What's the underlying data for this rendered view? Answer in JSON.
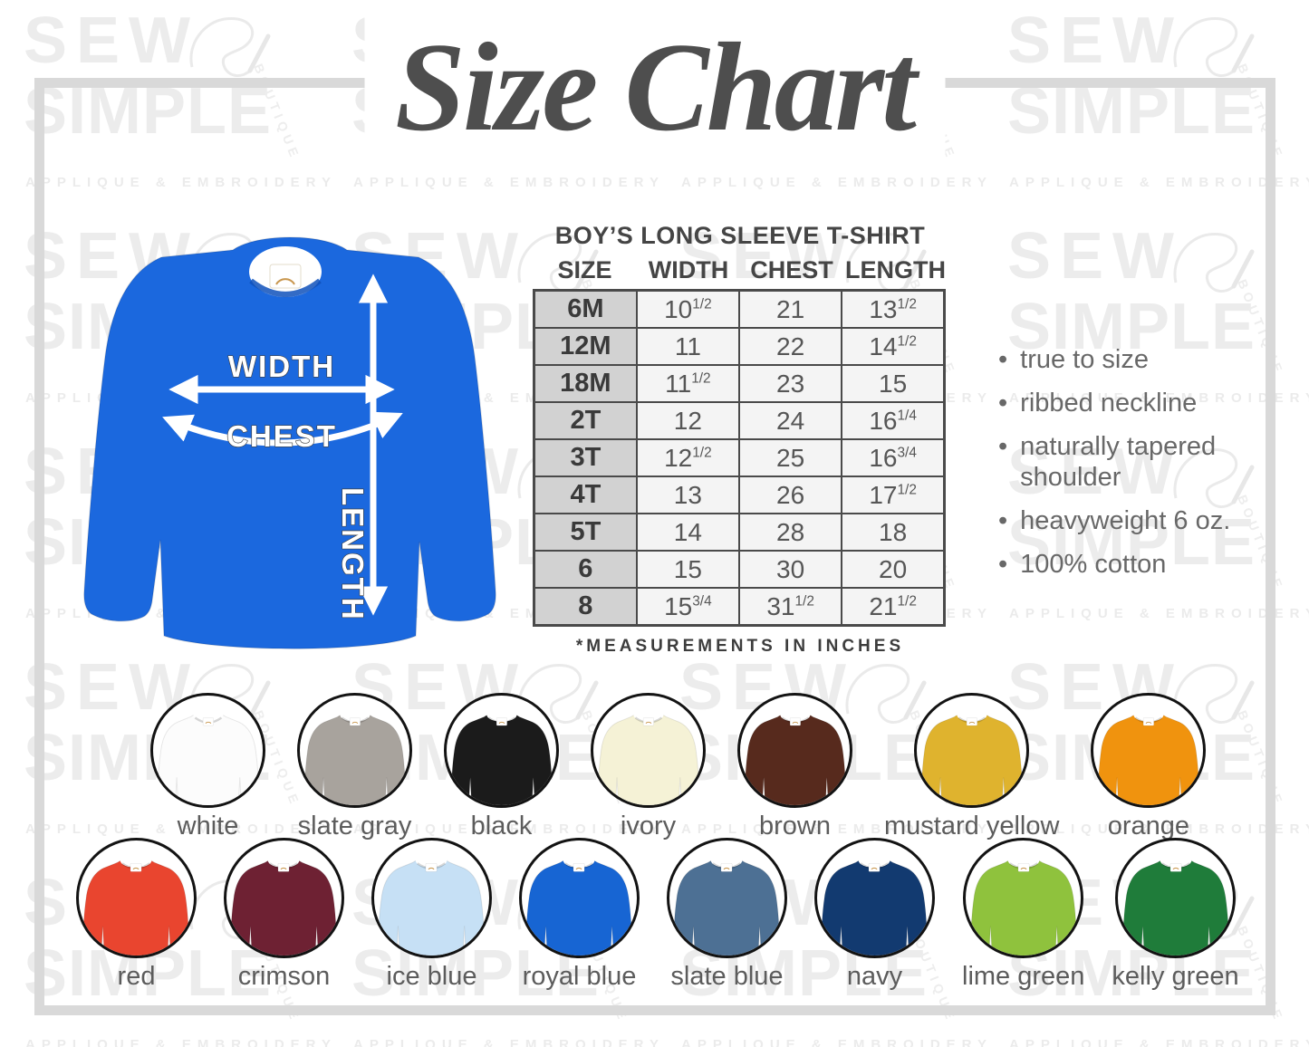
{
  "title": "Size Chart",
  "watermark": {
    "word1": "SEW",
    "word2": "SIMPLE",
    "word3": "BOUTIQUE",
    "word4": "APPLIQUE & EMBROIDERY"
  },
  "diagram": {
    "shirt_color": "#1b68de",
    "labels": {
      "width": "WIDTH",
      "chest": "CHEST",
      "length": "LENGTH"
    }
  },
  "size_table": {
    "title": "BOY’S LONG SLEEVE T-SHIRT",
    "columns": [
      "SIZE",
      "WIDTH",
      "CHEST",
      "LENGTH"
    ],
    "rows": [
      {
        "size": "6M",
        "width": {
          "n": "10",
          "f": "1/2"
        },
        "chest": {
          "n": "21",
          "f": ""
        },
        "length": {
          "n": "13",
          "f": "1/2"
        }
      },
      {
        "size": "12M",
        "width": {
          "n": "11",
          "f": ""
        },
        "chest": {
          "n": "22",
          "f": ""
        },
        "length": {
          "n": "14",
          "f": "1/2"
        }
      },
      {
        "size": "18M",
        "width": {
          "n": "11",
          "f": "1/2"
        },
        "chest": {
          "n": "23",
          "f": ""
        },
        "length": {
          "n": "15",
          "f": ""
        }
      },
      {
        "size": "2T",
        "width": {
          "n": "12",
          "f": ""
        },
        "chest": {
          "n": "24",
          "f": ""
        },
        "length": {
          "n": "16",
          "f": "1/4"
        }
      },
      {
        "size": "3T",
        "width": {
          "n": "12",
          "f": "1/2"
        },
        "chest": {
          "n": "25",
          "f": ""
        },
        "length": {
          "n": "16",
          "f": "3/4"
        }
      },
      {
        "size": "4T",
        "width": {
          "n": "13",
          "f": ""
        },
        "chest": {
          "n": "26",
          "f": ""
        },
        "length": {
          "n": "17",
          "f": "1/2"
        }
      },
      {
        "size": "5T",
        "width": {
          "n": "14",
          "f": ""
        },
        "chest": {
          "n": "28",
          "f": ""
        },
        "length": {
          "n": "18",
          "f": ""
        }
      },
      {
        "size": "6",
        "width": {
          "n": "15",
          "f": ""
        },
        "chest": {
          "n": "30",
          "f": ""
        },
        "length": {
          "n": "20",
          "f": ""
        }
      },
      {
        "size": "8",
        "width": {
          "n": "15",
          "f": "3/4"
        },
        "chest": {
          "n": "31",
          "f": "1/2"
        },
        "length": {
          "n": "21",
          "f": "1/2"
        }
      }
    ],
    "footnote": "*MEASUREMENTS IN INCHES"
  },
  "features": [
    "true to size",
    "ribbed neckline",
    "naturally tapered shoulder",
    "heavyweight 6 oz.",
    "100% cotton"
  ],
  "swatches": {
    "row1": [
      {
        "label": "white",
        "color": "#fcfcfc"
      },
      {
        "label": "slate gray",
        "color": "#a8a39d"
      },
      {
        "label": "black",
        "color": "#1b1b1b"
      },
      {
        "label": "ivory",
        "color": "#f5f2d6"
      },
      {
        "label": "brown",
        "color": "#572a1d"
      },
      {
        "label": "mustard yellow",
        "color": "#dfb32e"
      },
      {
        "label": "orange",
        "color": "#f0930e"
      }
    ],
    "row2": [
      {
        "label": "red",
        "color": "#e9452f"
      },
      {
        "label": "crimson",
        "color": "#6e2133"
      },
      {
        "label": "ice blue",
        "color": "#c6e0f5"
      },
      {
        "label": "royal blue",
        "color": "#1765d3"
      },
      {
        "label": "slate blue",
        "color": "#4d7094"
      },
      {
        "label": "navy",
        "color": "#123a70"
      },
      {
        "label": "lime green",
        "color": "#8fc23d"
      },
      {
        "label": "kelly green",
        "color": "#1f7c3a"
      }
    ]
  }
}
